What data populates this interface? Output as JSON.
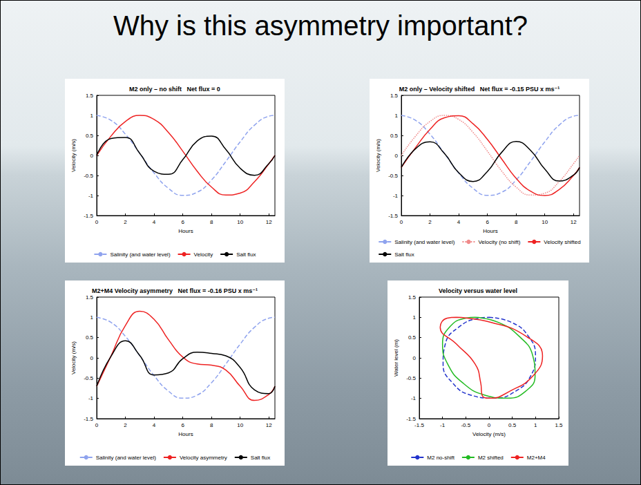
{
  "title": "Why is this asymmetry important?",
  "chart_data": [
    {
      "type": "line",
      "title": "M2 only – no shift   Net flux = 0",
      "x_label": "Hours",
      "y_label": "Velocity (m/s)",
      "x": [
        0,
        1,
        2,
        3,
        4,
        5,
        6,
        7,
        8,
        9,
        10,
        11,
        12,
        12.42
      ],
      "xlim": [
        0,
        12.42
      ],
      "xticks": [
        0,
        2,
        4,
        6,
        8,
        10,
        12
      ],
      "ylim": [
        -1.5,
        1.5
      ],
      "yticks": [
        -1.5,
        -1,
        -0.5,
        0,
        0.5,
        1,
        1.5
      ],
      "grid": false,
      "legend": "bottom",
      "series": [
        {
          "name": "Salinity (and water level)",
          "color": "#8fa3ee",
          "line_style": "dashed",
          "values": [
            1,
            0.875,
            0.53,
            0.053,
            -0.438,
            -0.82,
            -0.995,
            -0.919,
            -0.612,
            -0.151,
            0.34,
            0.757,
            0.979,
            1
          ]
        },
        {
          "name": "Velocity",
          "color": "#ee2222",
          "line_style": "solid",
          "values": [
            0,
            0.485,
            0.848,
            0.999,
            0.899,
            0.574,
            0.106,
            -0.391,
            -0.789,
            -0.988,
            -0.941,
            -0.654,
            -0.206,
            0
          ]
        },
        {
          "name": "Salt flux",
          "color": "#000000",
          "line_style": "solid",
          "values": [
            0,
            0.424,
            0.449,
            0.053,
            -0.394,
            -0.471,
            -0.105,
            0.359,
            0.483,
            0.149,
            -0.32,
            -0.495,
            -0.202,
            0
          ]
        }
      ]
    },
    {
      "type": "line",
      "title": "M2 only – Velocity shifted   Net flux = -0.15 PSU x ms⁻¹",
      "x_label": "Hours",
      "y_label": "Velocity (m/s)",
      "x": [
        0,
        1,
        2,
        3,
        4,
        5,
        6,
        7,
        8,
        9,
        10,
        11,
        12,
        12.42
      ],
      "xlim": [
        0,
        12.42
      ],
      "xticks": [
        0,
        2,
        4,
        6,
        8,
        10,
        12
      ],
      "ylim": [
        -1.5,
        1.5
      ],
      "yticks": [
        -1.5,
        -1,
        -0.5,
        0,
        0.5,
        1,
        1.5
      ],
      "grid": false,
      "legend": "bottom",
      "series": [
        {
          "name": "Salinity (and water level)",
          "color": "#8fa3ee",
          "line_style": "dashed",
          "values": [
            1,
            0.875,
            0.53,
            0.053,
            -0.438,
            -0.82,
            -0.995,
            -0.919,
            -0.612,
            -0.151,
            0.34,
            0.757,
            0.979,
            1
          ]
        },
        {
          "name": "Velocity (no shift)",
          "color": "#f08a8a",
          "line_style": "dotted",
          "values": [
            0,
            0.485,
            0.848,
            0.999,
            0.899,
            0.574,
            0.106,
            -0.391,
            -0.789,
            -0.988,
            -0.941,
            -0.654,
            -0.206,
            0
          ]
        },
        {
          "name": "Velocity shifted",
          "color": "#ee2222",
          "line_style": "solid",
          "values": [
            -0.3,
            0.2,
            0.65,
            0.94,
            0.99,
            0.79,
            0.4,
            -0.09,
            -0.57,
            -0.89,
            -1,
            -0.85,
            -0.5,
            -0.3
          ]
        },
        {
          "name": "Salt flux",
          "color": "#000000",
          "line_style": "solid",
          "values": [
            -0.3,
            0.17,
            0.34,
            0.05,
            -0.43,
            -0.65,
            -0.4,
            0.08,
            0.35,
            0.13,
            -0.34,
            -0.64,
            -0.49,
            -0.3
          ]
        }
      ]
    },
    {
      "type": "line",
      "title": "M2+M4 Velocity asymmetry   Net flux = -0.16 PSU x ms⁻¹",
      "x_label": "Hours",
      "y_label": "Velocity (m/s)",
      "x": [
        0,
        1,
        2,
        3,
        4,
        5,
        6,
        7,
        8,
        9,
        10,
        11,
        12,
        12.42
      ],
      "xlim": [
        0,
        12.42
      ],
      "xticks": [
        0,
        2,
        4,
        6,
        8,
        10,
        12
      ],
      "ylim": [
        -1.5,
        1.5
      ],
      "yticks": [
        -1.5,
        -1,
        -0.5,
        0,
        0.5,
        1,
        1.5
      ],
      "grid": false,
      "legend": "bottom",
      "series": [
        {
          "name": "Salinity (and water level)",
          "color": "#8fa3ee",
          "line_style": "dashed",
          "values": [
            1,
            0.875,
            0.53,
            0.053,
            -0.438,
            -0.82,
            -0.995,
            -0.919,
            -0.612,
            -0.151,
            0.34,
            0.757,
            0.979,
            1
          ]
        },
        {
          "name": "Velocity asymmetry",
          "color": "#ee2222",
          "line_style": "solid",
          "values": [
            -0.7,
            0.05,
            0.8,
            1.15,
            0.95,
            0.45,
            0.02,
            -0.15,
            -0.18,
            -0.3,
            -0.7,
            -1.05,
            -0.9,
            -0.7
          ]
        },
        {
          "name": "Salt flux",
          "color": "#000000",
          "line_style": "solid",
          "values": [
            -0.7,
            0.04,
            0.42,
            0.06,
            -0.42,
            -0.37,
            -0.02,
            0.14,
            0.11,
            0.05,
            -0.24,
            -0.79,
            -0.88,
            -0.7
          ]
        }
      ]
    },
    {
      "type": "line",
      "title": "Velocity versus water level",
      "x_label": "Velocity (m/s)",
      "y_label": "Water level (m)",
      "xlim": [
        -1.5,
        1.5
      ],
      "xticks": [
        -1.5,
        -1,
        -0.5,
        0,
        0.5,
        1,
        1.5
      ],
      "ylim": [
        -1.5,
        1.5
      ],
      "yticks": [
        -1.5,
        -1,
        -0.5,
        0,
        0.5,
        1,
        1.5
      ],
      "grid": false,
      "legend": "bottom",
      "series": [
        {
          "name": "M2 no-shift",
          "color": "#2233cc",
          "line_style": "dashed",
          "x": [
            0,
            0.485,
            0.848,
            0.999,
            0.899,
            0.574,
            0.106,
            -0.391,
            -0.789,
            -0.988,
            -0.941,
            -0.654,
            -0.206,
            0
          ],
          "values": [
            1,
            0.875,
            0.53,
            0.053,
            -0.438,
            -0.82,
            -0.995,
            -0.919,
            -0.612,
            -0.151,
            0.34,
            0.757,
            0.979,
            1
          ]
        },
        {
          "name": "M2 shifted",
          "color": "#22bb22",
          "line_style": "solid",
          "x": [
            -0.3,
            0.2,
            0.65,
            0.94,
            0.99,
            0.79,
            0.4,
            -0.09,
            -0.57,
            -0.89,
            -1,
            -0.85,
            -0.5,
            -0.3
          ],
          "values": [
            1,
            0.875,
            0.53,
            0.053,
            -0.438,
            -0.82,
            -0.995,
            -0.919,
            -0.612,
            -0.151,
            0.34,
            0.757,
            0.979,
            1
          ]
        },
        {
          "name": "M2+M4",
          "color": "#ee2222",
          "line_style": "solid",
          "x": [
            -0.7,
            0.05,
            0.8,
            1.15,
            0.95,
            0.45,
            0.02,
            -0.15,
            -0.18,
            -0.3,
            -0.7,
            -1.05,
            -0.9,
            -0.7
          ],
          "values": [
            1,
            0.875,
            0.53,
            0.053,
            -0.438,
            -0.82,
            -0.995,
            -0.919,
            -0.612,
            -0.151,
            0.34,
            0.757,
            0.979,
            1
          ]
        }
      ]
    }
  ]
}
